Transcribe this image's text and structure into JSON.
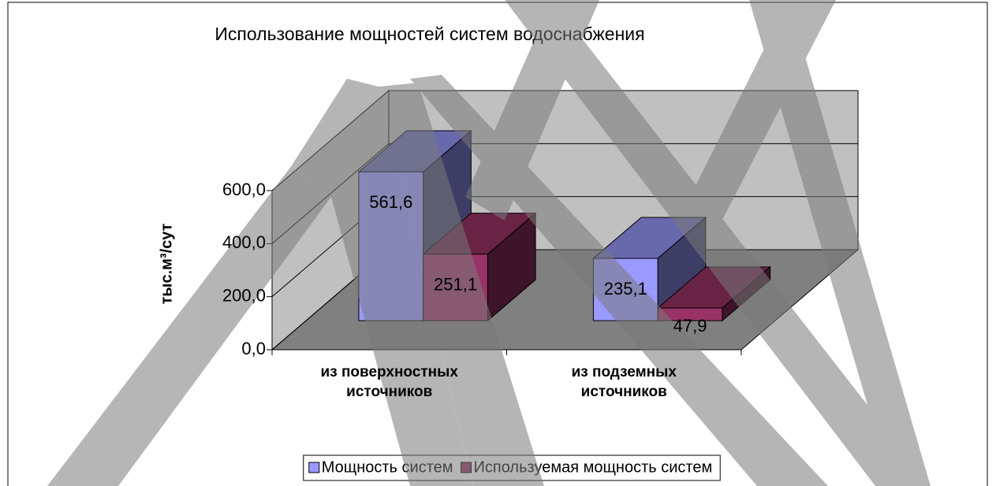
{
  "chart_data": {
    "type": "bar3d",
    "title": "Использование мощностей систем водоснабжения",
    "y_label": "тыс.м³/сут",
    "categories": [
      "из поверхностных источников",
      "из подземных источников"
    ],
    "series": [
      {
        "name": "Мощность систем",
        "color": "#9999ff",
        "values": [
          561.6,
          235.1
        ],
        "value_labels": [
          "561,6",
          "235,1"
        ]
      },
      {
        "name": "Используемая мощность систем",
        "color": "#993366",
        "values": [
          251.1,
          47.9
        ],
        "value_labels": [
          "251,1",
          "47,9"
        ]
      }
    ],
    "ylim": [
      0,
      600
    ],
    "yticks": [
      {
        "value": 0,
        "label": "0,0"
      },
      {
        "value": 200,
        "label": "200,0"
      },
      {
        "value": 400,
        "label": "400,0"
      },
      {
        "value": 600,
        "label": "600,0"
      }
    ],
    "grid": true,
    "legend": "bottom"
  }
}
